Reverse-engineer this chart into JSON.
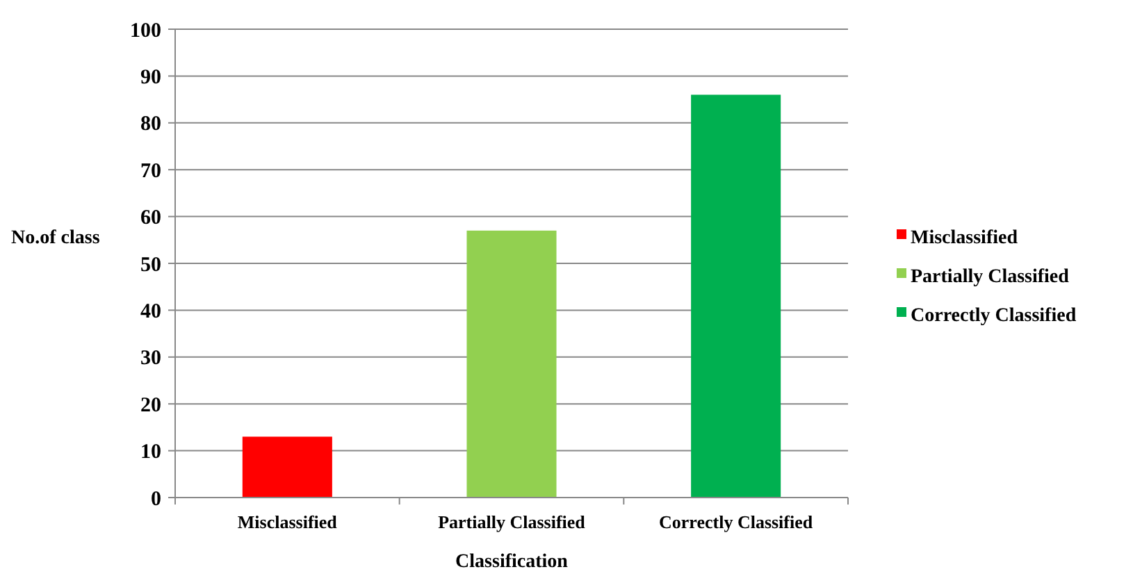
{
  "chart_data": {
    "type": "bar",
    "xlabel": "Classification",
    "ylabel": "No.of class",
    "categories": [
      "Misclassified",
      "Partially Classified",
      "Correctly Classified"
    ],
    "series": [
      {
        "name": "Misclassified",
        "color": "#ff0000",
        "values": [
          13,
          null,
          null
        ]
      },
      {
        "name": "Partially Classified",
        "color": "#92d050",
        "values": [
          null,
          57,
          null
        ]
      },
      {
        "name": "Correctly Classified",
        "color": "#00b050",
        "values": [
          null,
          null,
          86
        ]
      }
    ],
    "stacked": true,
    "ylim": [
      0,
      100
    ],
    "yticks": [
      0,
      10,
      20,
      30,
      40,
      50,
      60,
      70,
      80,
      90,
      100
    ],
    "grid": "y",
    "legend": "right"
  }
}
